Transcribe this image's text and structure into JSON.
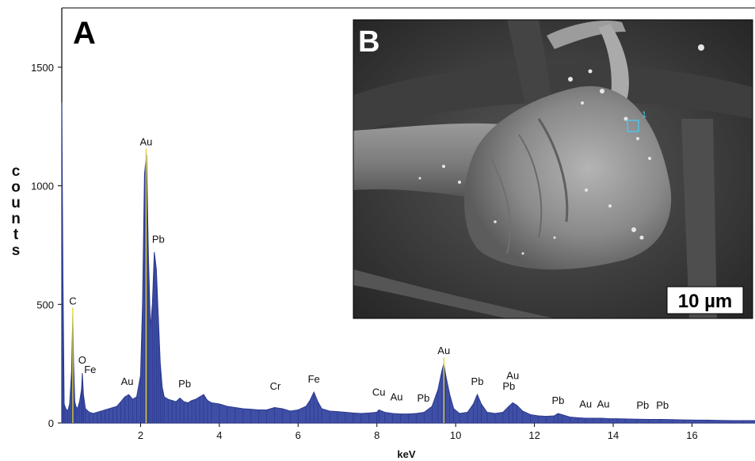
{
  "panel_a_label": "A",
  "chart_data": {
    "type": "area",
    "title": "",
    "xlabel": "keV",
    "ylabel": "counts",
    "xlim": [
      0,
      17.6
    ],
    "ylim": [
      0,
      1750
    ],
    "xticks": [
      2,
      4,
      6,
      8,
      10,
      12,
      14,
      16
    ],
    "yticks": [
      0,
      500,
      1000,
      1500
    ],
    "grid": false,
    "colors": {
      "fill": "#3f4fa6",
      "stroke": "#2c3a8f",
      "marker": "#e6d42a"
    },
    "series": [
      {
        "x": [
          0.0,
          0.03,
          0.06,
          0.1,
          0.15,
          0.2,
          0.25,
          0.28,
          0.3,
          0.33,
          0.36,
          0.4,
          0.45,
          0.5,
          0.52,
          0.55,
          0.6,
          0.7,
          0.8,
          0.9,
          1.0,
          1.1,
          1.2,
          1.3,
          1.4,
          1.5,
          1.6,
          1.7,
          1.8,
          1.9,
          2.0,
          2.05,
          2.1,
          2.15,
          2.2,
          2.25,
          2.3,
          2.35,
          2.4,
          2.45,
          2.5,
          2.55,
          2.6,
          2.7,
          2.8,
          2.9,
          3.0,
          3.1,
          3.2,
          3.3,
          3.4,
          3.5,
          3.6,
          3.7,
          3.8,
          4.0,
          4.2,
          4.4,
          4.6,
          4.8,
          5.0,
          5.2,
          5.4,
          5.6,
          5.8,
          6.0,
          6.2,
          6.3,
          6.4,
          6.5,
          6.6,
          6.8,
          7.0,
          7.2,
          7.4,
          7.6,
          7.8,
          8.0,
          8.05,
          8.2,
          8.4,
          8.6,
          8.8,
          9.0,
          9.2,
          9.4,
          9.55,
          9.65,
          9.7,
          9.75,
          9.85,
          9.95,
          10.1,
          10.3,
          10.45,
          10.55,
          10.65,
          10.8,
          11.0,
          11.2,
          11.35,
          11.45,
          11.55,
          11.7,
          11.9,
          12.1,
          12.3,
          12.5,
          12.6,
          12.7,
          12.9,
          13.1,
          13.3,
          13.5,
          13.7,
          13.9,
          14.1,
          14.3,
          14.6,
          14.9,
          15.2,
          15.5,
          15.8,
          16.1,
          16.4,
          16.7,
          17.0,
          17.3,
          17.6
        ],
        "y": [
          1350,
          600,
          80,
          60,
          50,
          80,
          220,
          460,
          250,
          90,
          70,
          60,
          90,
          140,
          210,
          120,
          60,
          45,
          40,
          45,
          50,
          55,
          60,
          65,
          70,
          90,
          110,
          120,
          100,
          110,
          200,
          500,
          1050,
          1130,
          700,
          400,
          500,
          720,
          650,
          450,
          250,
          150,
          110,
          100,
          95,
          90,
          105,
          90,
          85,
          95,
          100,
          110,
          120,
          95,
          85,
          80,
          70,
          65,
          60,
          58,
          55,
          55,
          65,
          60,
          50,
          55,
          70,
          95,
          130,
          90,
          60,
          50,
          48,
          45,
          42,
          40,
          42,
          45,
          55,
          45,
          40,
          38,
          38,
          40,
          45,
          70,
          140,
          220,
          250,
          200,
          120,
          60,
          40,
          45,
          80,
          120,
          80,
          45,
          40,
          45,
          70,
          85,
          75,
          50,
          35,
          30,
          28,
          30,
          40,
          35,
          25,
          22,
          20,
          20,
          20,
          18,
          18,
          17,
          16,
          15,
          15,
          14,
          13,
          12,
          12,
          11,
          10,
          10,
          10
        ]
      }
    ],
    "peak_labels": [
      {
        "text": "C",
        "x": 0.28,
        "y": 460,
        "marker": true
      },
      {
        "text": "O",
        "x": 0.52,
        "y": 210,
        "marker": false
      },
      {
        "text": "Fe",
        "x": 0.72,
        "y": 170,
        "marker": false
      },
      {
        "text": "Au",
        "x": 1.66,
        "y": 120,
        "marker": false
      },
      {
        "text": "Au",
        "x": 2.14,
        "y": 1130,
        "marker": true
      },
      {
        "text": "Pb",
        "x": 2.45,
        "y": 720,
        "marker": false
      },
      {
        "text": "Pb",
        "x": 3.12,
        "y": 110,
        "marker": false
      },
      {
        "text": "Cr",
        "x": 5.42,
        "y": 100,
        "marker": false
      },
      {
        "text": "Fe",
        "x": 6.4,
        "y": 130,
        "marker": false
      },
      {
        "text": "Cu",
        "x": 8.05,
        "y": 75,
        "marker": false
      },
      {
        "text": "Au",
        "x": 8.5,
        "y": 55,
        "marker": false
      },
      {
        "text": "Pb",
        "x": 9.18,
        "y": 50,
        "marker": false
      },
      {
        "text": "Au",
        "x": 9.7,
        "y": 250,
        "marker": true
      },
      {
        "text": "Pb",
        "x": 10.55,
        "y": 120,
        "marker": false
      },
      {
        "text": "Au",
        "x": 11.45,
        "y": 145,
        "marker": false
      },
      {
        "text": "Pb",
        "x": 11.35,
        "y": 100,
        "marker": false
      },
      {
        "text": "Pb",
        "x": 12.6,
        "y": 40,
        "marker": false
      },
      {
        "text": "Au",
        "x": 13.3,
        "y": 25,
        "marker": false
      },
      {
        "text": "Au",
        "x": 13.75,
        "y": 25,
        "marker": false
      },
      {
        "text": "Pb",
        "x": 14.75,
        "y": 20,
        "marker": false
      },
      {
        "text": "Pb",
        "x": 15.25,
        "y": 20,
        "marker": false
      }
    ]
  },
  "inset": {
    "label": "B",
    "scale_bar_text": "10 µm",
    "spot_label": "1"
  }
}
